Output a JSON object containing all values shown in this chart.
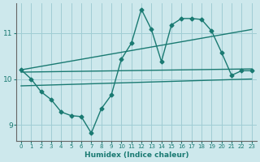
{
  "xlabel": "Humidex (Indice chaleur)",
  "background_color": "#cde8ec",
  "grid_color": "#a0cdd4",
  "line_color": "#1a7a72",
  "xlim": [
    -0.5,
    23.5
  ],
  "ylim": [
    8.65,
    11.65
  ],
  "yticks": [
    9,
    10,
    11
  ],
  "xticks": [
    0,
    1,
    2,
    3,
    4,
    5,
    6,
    7,
    8,
    9,
    10,
    11,
    12,
    13,
    14,
    15,
    16,
    17,
    18,
    19,
    20,
    21,
    22,
    23
  ],
  "main_x": [
    0,
    1,
    2,
    3,
    4,
    5,
    6,
    7,
    8,
    9,
    10,
    11,
    12,
    13,
    14,
    15,
    16,
    17,
    18,
    19,
    20,
    21,
    22,
    23
  ],
  "main_y": [
    10.2,
    10.0,
    9.72,
    9.55,
    9.28,
    9.2,
    9.18,
    8.82,
    9.35,
    9.65,
    10.43,
    10.78,
    11.52,
    11.08,
    10.38,
    11.18,
    11.32,
    11.32,
    11.3,
    11.05,
    10.58,
    10.08,
    10.18,
    10.18
  ],
  "trend1_x0": 0,
  "trend1_y0": 10.2,
  "trend1_x1": 23,
  "trend1_y1": 11.08,
  "trend2_x0": 0,
  "trend2_y0": 10.15,
  "trend2_x1": 23,
  "trend2_y1": 10.22,
  "trend3_x0": 0,
  "trend3_y0": 9.85,
  "trend3_x1": 23,
  "trend3_y1": 10.0
}
